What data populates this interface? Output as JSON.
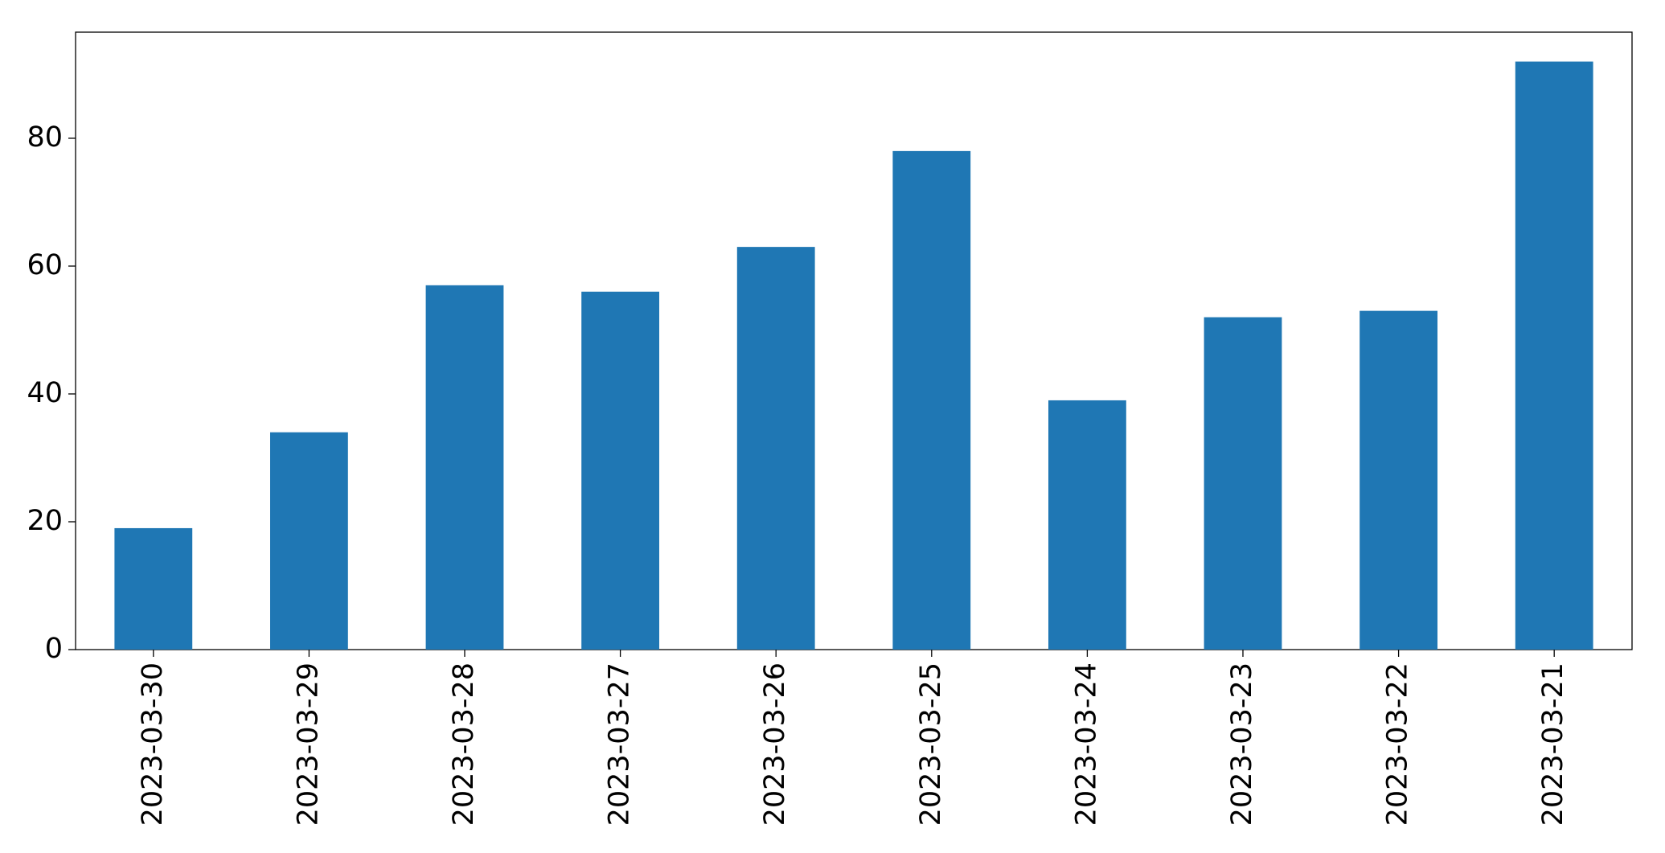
{
  "chart_data": {
    "type": "bar",
    "categories": [
      "2023-03-30",
      "2023-03-29",
      "2023-03-28",
      "2023-03-27",
      "2023-03-26",
      "2023-03-25",
      "2023-03-24",
      "2023-03-23",
      "2023-03-22",
      "2023-03-21"
    ],
    "values": [
      19,
      34,
      57,
      56,
      63,
      78,
      39,
      52,
      53,
      92
    ],
    "color": "#1f77b4",
    "ylim": [
      0,
      96.6
    ],
    "yticks": [
      0,
      20,
      40,
      60,
      80
    ],
    "grid": false
  }
}
